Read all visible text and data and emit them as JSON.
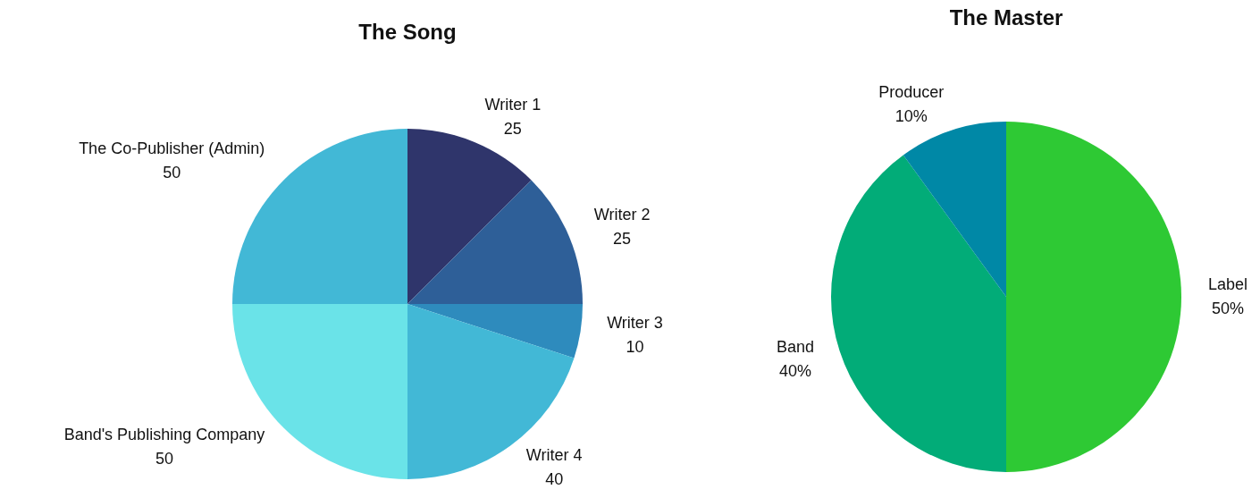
{
  "chart_data": [
    {
      "type": "pie",
      "title": "The Song",
      "categories": [
        "Writer 1",
        "Writer 2",
        "Writer 3",
        "Writer 4",
        "Band's Publishing Company",
        "The Co-Publisher (Admin)"
      ],
      "values": [
        25,
        25,
        10,
        40,
        50,
        50
      ],
      "colors": [
        "#2f356b",
        "#2e5f98",
        "#2e8bbd",
        "#42b8d6",
        "#6ae3e8",
        "#42b8d6"
      ],
      "data_labels": true
    },
    {
      "type": "pie",
      "title": "The Master",
      "categories": [
        "Label",
        "Band",
        "Producer"
      ],
      "values": [
        50,
        40,
        10
      ],
      "colors": [
        "#2ec934",
        "#02ac78",
        "#0088a6"
      ],
      "value_labels": [
        "50%",
        "40%",
        "10%"
      ]
    }
  ]
}
